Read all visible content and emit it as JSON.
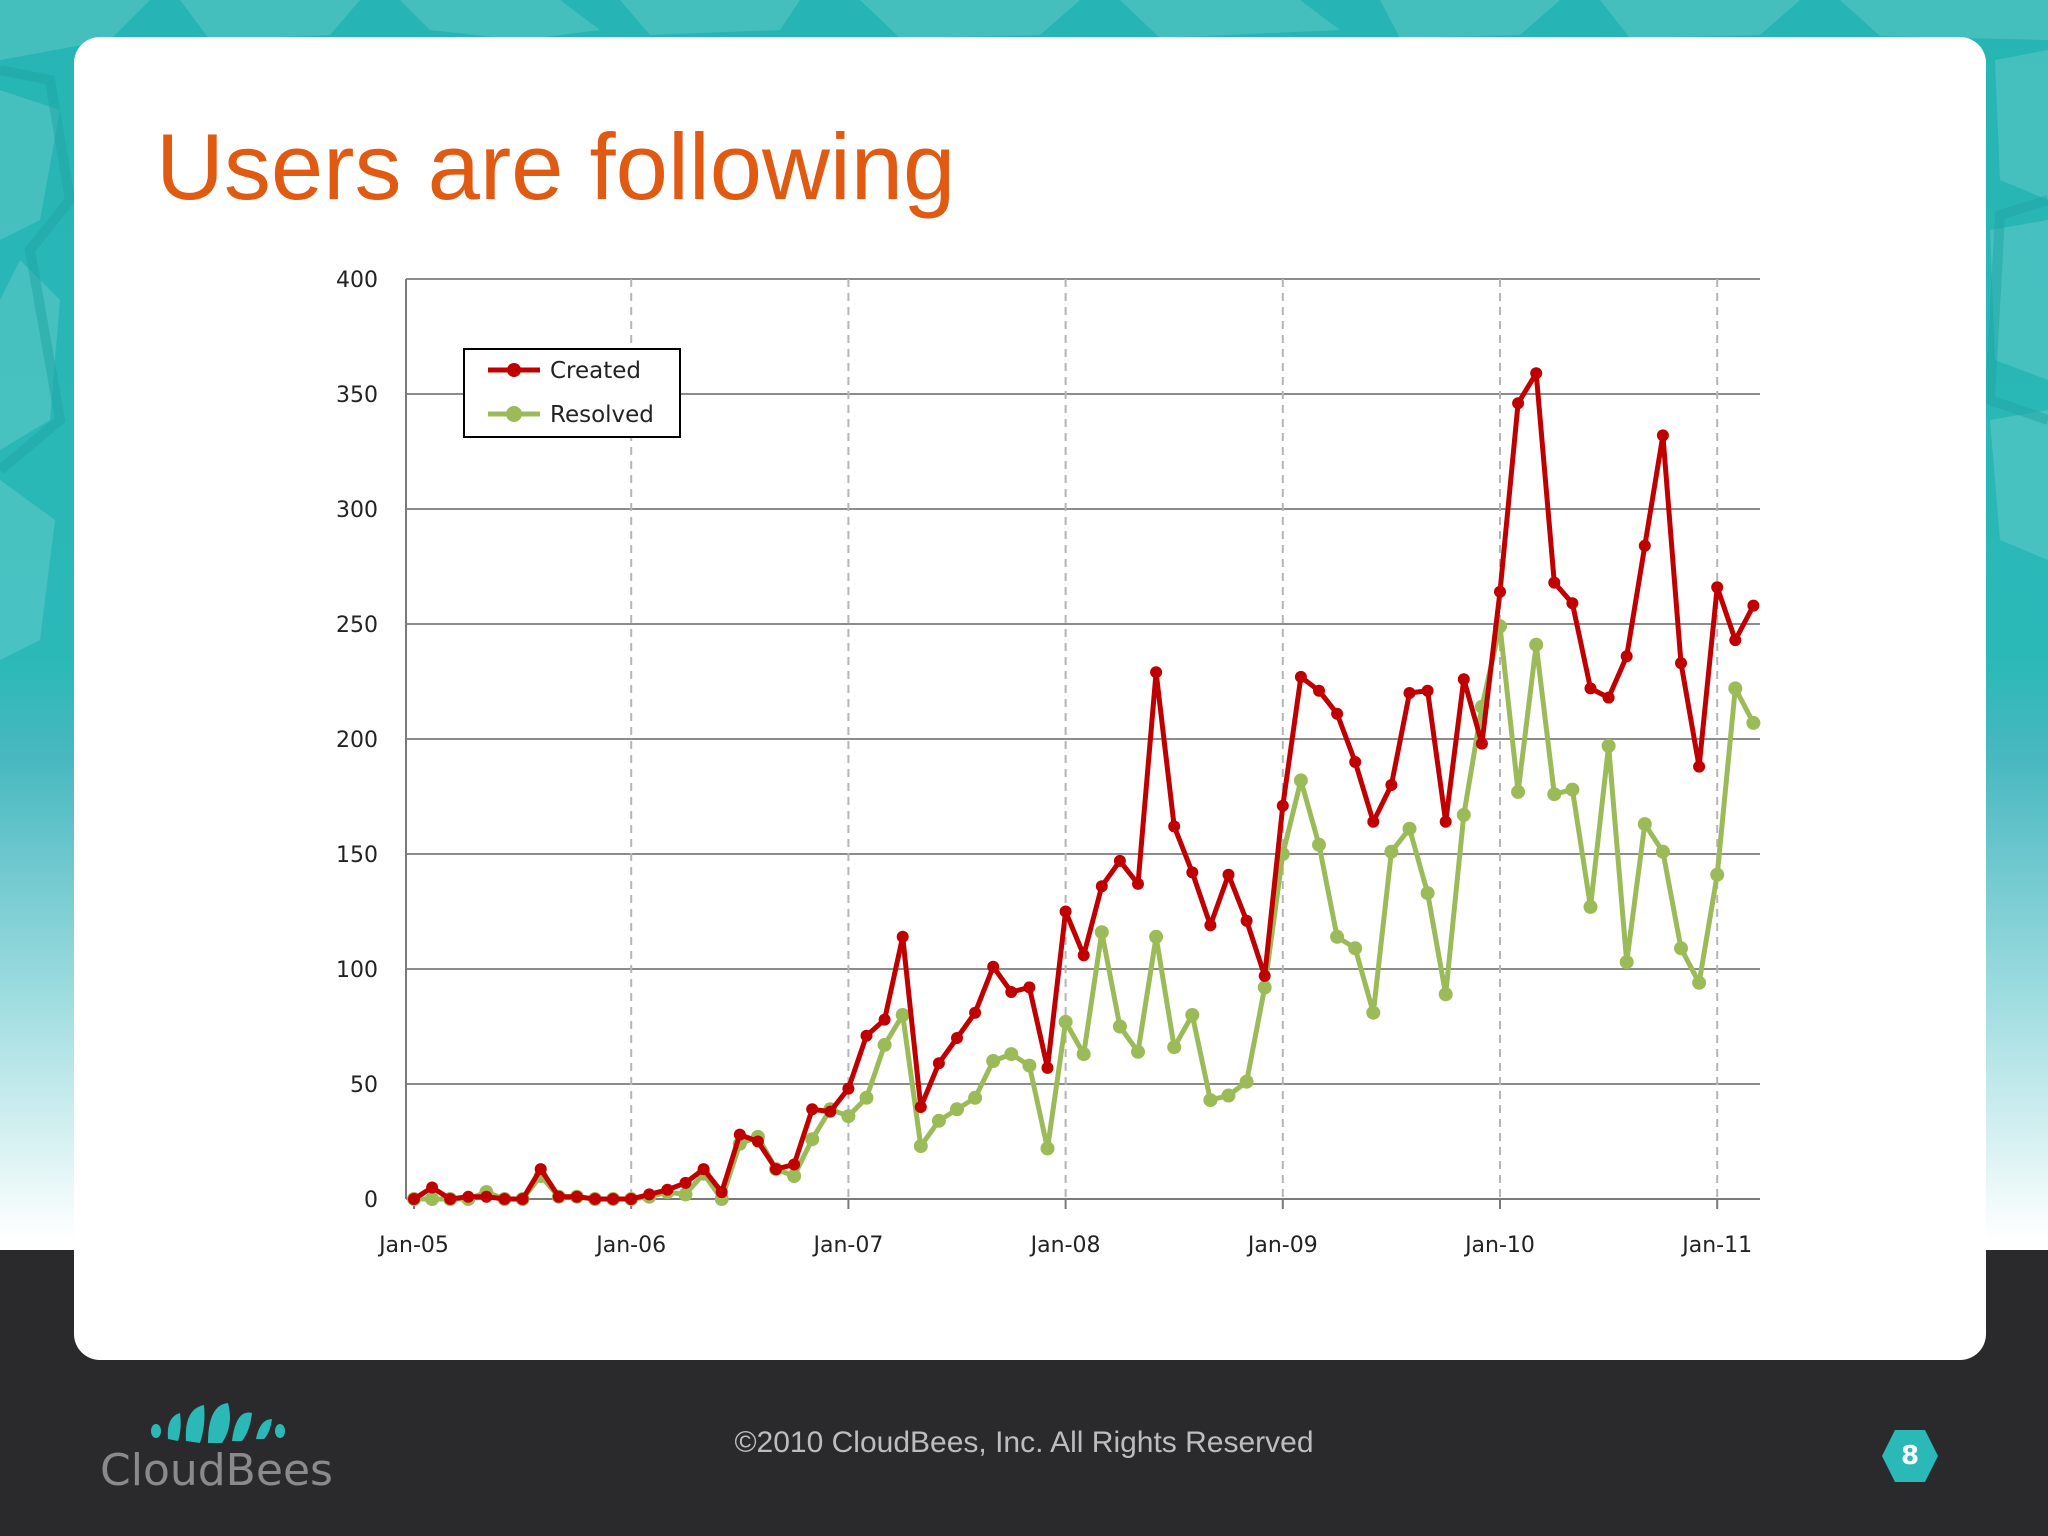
{
  "slide": {
    "title": "Users are following",
    "footer_text": "©2010 CloudBees, Inc. All Rights Reserved",
    "page_number": "8",
    "brand": "CloudBees"
  },
  "colors": {
    "title": "#e05a12",
    "created": "#c00000",
    "resolved": "#9bbb59",
    "teal": "#2bb9b8",
    "footer_bg": "#2a2a2d"
  },
  "chart_data": {
    "type": "line",
    "x_tick_labels": [
      "Jan-05",
      "Jan-06",
      "Jan-07",
      "Jan-08",
      "Jan-09",
      "Jan-10",
      "Jan-11"
    ],
    "x_start": "Jan-05",
    "y_ticks": [
      0,
      50,
      100,
      150,
      200,
      250,
      300,
      350,
      400
    ],
    "ylim": [
      0,
      400
    ],
    "grid": "horizontal solid, vertical dashed at year ticks",
    "legend_position": "top-left",
    "series": [
      {
        "name": "Created",
        "color": "#c00000",
        "values": [
          0,
          5,
          0,
          1,
          1,
          0,
          0,
          13,
          1,
          1,
          0,
          0,
          0,
          2,
          4,
          7,
          13,
          3,
          28,
          25,
          13,
          15,
          39,
          38,
          48,
          71,
          78,
          114,
          40,
          59,
          70,
          81,
          101,
          90,
          92,
          57,
          125,
          106,
          136,
          147,
          137,
          229,
          162,
          142,
          119,
          141,
          121,
          97,
          171,
          227,
          221,
          211,
          190,
          164,
          180,
          220,
          221,
          164,
          226,
          198,
          264,
          346,
          359,
          268,
          259,
          222,
          218,
          236,
          284,
          332,
          233,
          188,
          266,
          243,
          258
        ]
      },
      {
        "name": "Resolved",
        "color": "#9bbb59",
        "values": [
          0,
          0,
          0,
          0,
          3,
          0,
          0,
          10,
          1,
          1,
          0,
          0,
          0,
          1,
          3,
          2,
          11,
          0,
          24,
          27,
          13,
          10,
          26,
          39,
          36,
          44,
          67,
          80,
          23,
          34,
          39,
          44,
          60,
          63,
          58,
          22,
          77,
          63,
          116,
          75,
          64,
          114,
          66,
          80,
          43,
          45,
          51,
          92,
          150,
          182,
          154,
          114,
          109,
          81,
          151,
          161,
          133,
          89,
          167,
          214,
          249,
          177,
          241,
          176,
          178,
          127,
          197,
          103,
          163,
          151,
          109,
          94,
          141,
          222,
          207
        ]
      }
    ]
  }
}
